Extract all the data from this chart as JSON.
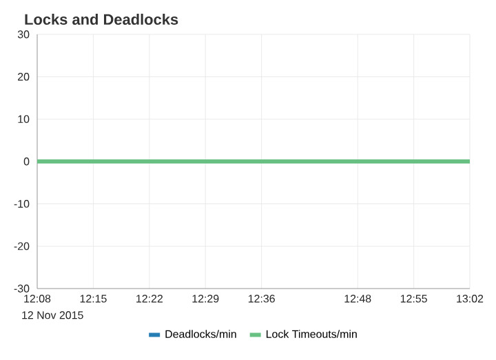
{
  "chart_data": {
    "type": "line",
    "title": "Locks and Deadlocks",
    "x": [
      12.1333,
      13.0333
    ],
    "xlim": [
      12.1333,
      13.0333
    ],
    "xticks": [
      {
        "value": 12.1333,
        "label": "12:08"
      },
      {
        "value": 12.25,
        "label": "12:15"
      },
      {
        "value": 12.3667,
        "label": "12:22"
      },
      {
        "value": 12.4833,
        "label": "12:29"
      },
      {
        "value": 12.6,
        "label": "12:36"
      },
      {
        "value": 12.8,
        "label": "12:48"
      },
      {
        "value": 12.9167,
        "label": "12:55"
      },
      {
        "value": 13.0333,
        "label": "13:02"
      }
    ],
    "ylim": [
      -30,
      30
    ],
    "yticks": [
      -30,
      -20,
      -10,
      0,
      10,
      20,
      30
    ],
    "series": [
      {
        "name": "Deadlocks/min",
        "color": "#267db3",
        "values": [
          null,
          null
        ]
      },
      {
        "name": "Lock Timeouts/min",
        "color": "#68c182",
        "values": [
          0,
          0
        ]
      }
    ],
    "annotations": [
      "12 Nov 2015"
    ],
    "grid": true,
    "legend": "bottom",
    "marker": "none",
    "line_style": "solid"
  }
}
